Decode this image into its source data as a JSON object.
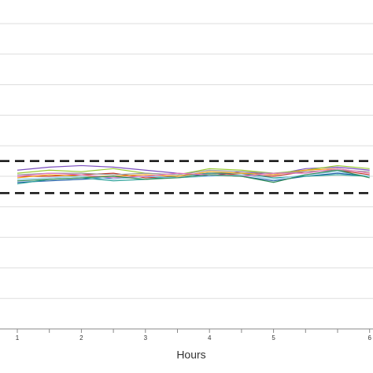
{
  "chart_data": {
    "type": "line",
    "x_label": "Hours",
    "categories": [
      "1",
      null,
      "2",
      null,
      "3",
      null,
      "4",
      null,
      "5",
      null,
      null,
      "6"
    ],
    "ylim": [
      0,
      10
    ],
    "grid_values": [
      0,
      1,
      2,
      3,
      4,
      5,
      6,
      7,
      8,
      9,
      10
    ],
    "reference_lines": [
      5.5,
      4.45
    ],
    "grid": true,
    "series": [
      {
        "color": "#7b4fbf",
        "values": [
          5.2,
          5.3,
          5.35,
          5.3,
          5.2,
          5.1,
          5.0,
          5.15,
          5.05,
          5.25,
          5.3,
          5.2
        ]
      },
      {
        "color": "#9acd32",
        "values": [
          5.1,
          5.2,
          5.15,
          5.25,
          5.1,
          5.05,
          5.25,
          5.2,
          5.1,
          5.2,
          5.35,
          5.25
        ]
      },
      {
        "color": "#1f5fa8",
        "values": [
          4.8,
          4.85,
          4.9,
          4.95,
          5.0,
          4.95,
          5.05,
          5.0,
          4.85,
          5.0,
          5.1,
          5.0
        ]
      },
      {
        "color": "#c0392b",
        "values": [
          5.0,
          5.0,
          5.05,
          5.1,
          4.95,
          5.0,
          5.1,
          5.05,
          5.0,
          5.15,
          5.2,
          5.05
        ]
      },
      {
        "color": "#2aa198",
        "values": [
          4.75,
          4.9,
          4.95,
          4.85,
          4.9,
          5.0,
          5.1,
          5.1,
          4.95,
          5.0,
          5.05,
          5.0
        ]
      },
      {
        "color": "#f39c12",
        "values": [
          4.95,
          5.05,
          5.0,
          5.0,
          5.05,
          5.0,
          5.15,
          5.1,
          5.05,
          5.2,
          5.25,
          5.1
        ]
      },
      {
        "color": "#999999",
        "values": [
          5.05,
          5.1,
          5.1,
          5.05,
          5.1,
          5.05,
          5.2,
          5.15,
          5.1,
          5.15,
          5.2,
          5.15
        ]
      },
      {
        "color": "#8ecae6",
        "values": [
          4.9,
          4.95,
          5.0,
          4.9,
          5.0,
          4.95,
          5.0,
          5.05,
          4.9,
          5.05,
          5.15,
          5.0
        ]
      },
      {
        "color": "#e377c2",
        "values": [
          5.0,
          5.1,
          5.05,
          4.95,
          5.0,
          5.1,
          5.05,
          5.0,
          5.1,
          5.1,
          5.25,
          5.1
        ]
      },
      {
        "color": "#2e8b57",
        "values": [
          4.85,
          4.9,
          4.95,
          5.0,
          4.9,
          4.95,
          5.05,
          5.0,
          4.8,
          5.05,
          5.2,
          4.95
        ]
      }
    ]
  }
}
